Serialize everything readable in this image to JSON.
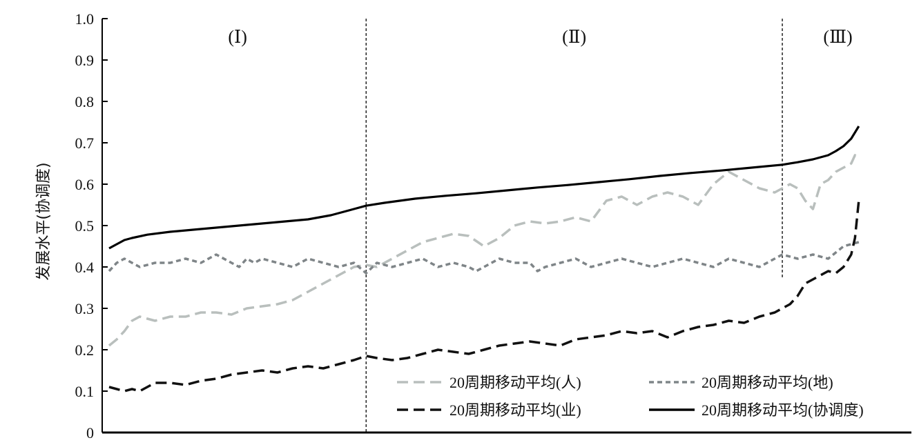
{
  "chart_data": {
    "type": "line",
    "title": "",
    "xlabel": "",
    "ylabel": "发展水平(协调度)",
    "ylim": [
      0,
      1.0
    ],
    "yticks": [
      "0",
      "0.1",
      "0.2",
      "0.3",
      "0.4",
      "0.5",
      "0.6",
      "0.7",
      "0.8",
      "0.9",
      "1.0"
    ],
    "xlim": [
      0,
      100
    ],
    "grid": false,
    "legend": "bottom-right",
    "regions": [
      {
        "label": "(Ⅰ)",
        "x_start": 0,
        "x_end": 33.6
      },
      {
        "label": "(Ⅱ)",
        "x_start": 33.6,
        "x_end": 88
      },
      {
        "label": "(Ⅲ)",
        "x_start": 88,
        "x_end": 100
      }
    ],
    "dividers": [
      33.6,
      88
    ],
    "series": [
      {
        "name": "20周期移动平均(人)",
        "color": "#b9bfbd",
        "style": "long-dash",
        "x": [
          0,
          1,
          2,
          3,
          4,
          5,
          6,
          8,
          10,
          12,
          14,
          16,
          18,
          20,
          22,
          24,
          26,
          28,
          30,
          32,
          33.6,
          35,
          37,
          39,
          41,
          43,
          45,
          47,
          49,
          51,
          53,
          55,
          57,
          59,
          61,
          63,
          65,
          67,
          69,
          71,
          73,
          75,
          77,
          79,
          81,
          83,
          85,
          87,
          88,
          89,
          90,
          91,
          92,
          93,
          94,
          95,
          96,
          97,
          97.5,
          98
        ],
        "values": [
          0.21,
          0.225,
          0.245,
          0.27,
          0.28,
          0.275,
          0.27,
          0.28,
          0.28,
          0.29,
          0.29,
          0.285,
          0.3,
          0.305,
          0.31,
          0.32,
          0.34,
          0.36,
          0.38,
          0.4,
          0.405,
          0.4,
          0.42,
          0.44,
          0.46,
          0.47,
          0.48,
          0.475,
          0.45,
          0.47,
          0.5,
          0.51,
          0.505,
          0.51,
          0.52,
          0.51,
          0.56,
          0.57,
          0.55,
          0.57,
          0.58,
          0.57,
          0.55,
          0.6,
          0.63,
          0.61,
          0.59,
          0.58,
          0.59,
          0.6,
          0.59,
          0.56,
          0.54,
          0.6,
          0.61,
          0.63,
          0.64,
          0.65,
          0.67,
          0.66
        ]
      },
      {
        "name": "20周期移动平均(地)",
        "color": "#7f8588",
        "style": "short-dash",
        "x": [
          0,
          1,
          2,
          3,
          4,
          6,
          8,
          10,
          12,
          14,
          16,
          17,
          18,
          19,
          20,
          22,
          24,
          26,
          28,
          30,
          32,
          33.6,
          35,
          37,
          39,
          41,
          43,
          45,
          47,
          48,
          49,
          51,
          53,
          55,
          56,
          57,
          59,
          61,
          63,
          65,
          67,
          69,
          71,
          73,
          75,
          77,
          79,
          81,
          83,
          85,
          87,
          88,
          90,
          92,
          94,
          96,
          98
        ],
        "values": [
          0.39,
          0.41,
          0.42,
          0.41,
          0.4,
          0.41,
          0.41,
          0.42,
          0.41,
          0.43,
          0.41,
          0.4,
          0.42,
          0.41,
          0.42,
          0.41,
          0.4,
          0.42,
          0.41,
          0.4,
          0.41,
          0.385,
          0.41,
          0.4,
          0.41,
          0.42,
          0.4,
          0.41,
          0.4,
          0.39,
          0.4,
          0.42,
          0.41,
          0.41,
          0.39,
          0.4,
          0.41,
          0.42,
          0.4,
          0.41,
          0.42,
          0.41,
          0.4,
          0.41,
          0.42,
          0.41,
          0.4,
          0.42,
          0.41,
          0.4,
          0.42,
          0.43,
          0.42,
          0.43,
          0.42,
          0.45,
          0.46
        ]
      },
      {
        "name": "20周期移动平均(业)",
        "color": "#111111",
        "style": "long-dash",
        "x": [
          0,
          1,
          2,
          3,
          4,
          5,
          6,
          8,
          10,
          12,
          14,
          16,
          18,
          20,
          22,
          24,
          26,
          28,
          30,
          32,
          33.6,
          35,
          37,
          39,
          41,
          43,
          45,
          47,
          49,
          51,
          53,
          55,
          57,
          59,
          61,
          63,
          65,
          67,
          69,
          71,
          73,
          75,
          77,
          79,
          81,
          83,
          85,
          87,
          88,
          89,
          90,
          91,
          92,
          93,
          94,
          95,
          96,
          97,
          97.5,
          98
        ],
        "values": [
          0.11,
          0.105,
          0.1,
          0.105,
          0.1,
          0.11,
          0.12,
          0.12,
          0.115,
          0.125,
          0.13,
          0.14,
          0.145,
          0.15,
          0.145,
          0.155,
          0.16,
          0.155,
          0.165,
          0.175,
          0.185,
          0.18,
          0.175,
          0.18,
          0.19,
          0.2,
          0.195,
          0.19,
          0.2,
          0.21,
          0.215,
          0.22,
          0.215,
          0.21,
          0.225,
          0.23,
          0.235,
          0.245,
          0.24,
          0.245,
          0.23,
          0.245,
          0.255,
          0.26,
          0.27,
          0.265,
          0.28,
          0.29,
          0.3,
          0.31,
          0.33,
          0.36,
          0.37,
          0.38,
          0.39,
          0.385,
          0.4,
          0.43,
          0.47,
          0.56
        ]
      },
      {
        "name": "20周期移动平均(协调度)",
        "color": "#000000",
        "style": "solid",
        "x": [
          0,
          1,
          2,
          3,
          5,
          8,
          11,
          14,
          17,
          20,
          23,
          26,
          29,
          32,
          33.6,
          36,
          40,
          44,
          48,
          52,
          56,
          60,
          64,
          68,
          72,
          76,
          80,
          84,
          88,
          90,
          92,
          94,
          95,
          96,
          97,
          98
        ],
        "values": [
          0.445,
          0.455,
          0.465,
          0.47,
          0.478,
          0.485,
          0.49,
          0.495,
          0.5,
          0.505,
          0.51,
          0.515,
          0.525,
          0.54,
          0.548,
          0.555,
          0.565,
          0.572,
          0.578,
          0.585,
          0.592,
          0.598,
          0.605,
          0.612,
          0.62,
          0.627,
          0.633,
          0.64,
          0.647,
          0.653,
          0.66,
          0.67,
          0.68,
          0.692,
          0.71,
          0.74
        ]
      }
    ]
  }
}
